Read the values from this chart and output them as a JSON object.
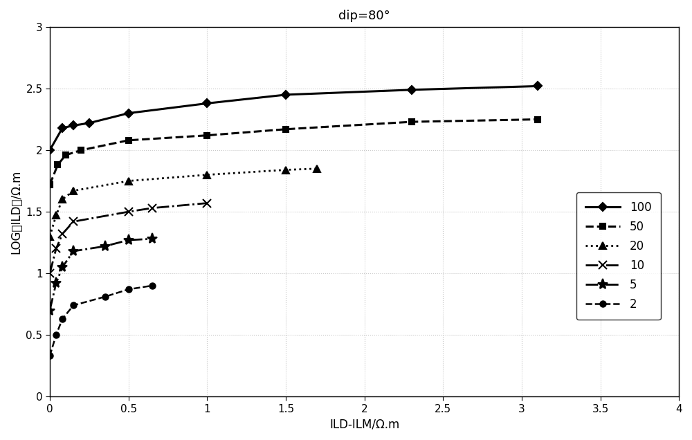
{
  "title": "dip=80°",
  "xlabel": "ILD-ILM/Ω.m",
  "ylabel": "LOG（ILD）/Ω.m",
  "xlim": [
    0,
    4
  ],
  "ylim": [
    0,
    3
  ],
  "xticks": [
    0,
    0.5,
    1,
    1.5,
    2,
    2.5,
    3,
    3.5,
    4
  ],
  "yticks": [
    0,
    0.5,
    1,
    1.5,
    2,
    2.5,
    3
  ],
  "series": [
    {
      "label": "100",
      "linestyle": "-",
      "marker": "D",
      "color": "#000000",
      "linewidth": 2.2,
      "markersize": 6,
      "x": [
        0.0,
        0.08,
        0.15,
        0.25,
        0.5,
        1.0,
        1.5,
        2.3,
        3.1
      ],
      "y": [
        2.0,
        2.18,
        2.2,
        2.22,
        2.3,
        2.38,
        2.45,
        2.49,
        2.52
      ]
    },
    {
      "label": "50",
      "linestyle": "--",
      "marker": "s",
      "color": "#000000",
      "linewidth": 2.2,
      "markersize": 6,
      "x": [
        0.0,
        0.05,
        0.1,
        0.2,
        0.5,
        1.0,
        1.5,
        2.3,
        3.1
      ],
      "y": [
        1.72,
        1.88,
        1.96,
        2.0,
        2.08,
        2.12,
        2.17,
        2.23,
        2.25
      ]
    },
    {
      "label": "20",
      "linestyle": ":",
      "marker": "^",
      "color": "#000000",
      "linewidth": 2.0,
      "markersize": 7,
      "x": [
        0.0,
        0.04,
        0.08,
        0.15,
        0.5,
        1.0,
        1.5,
        1.7
      ],
      "y": [
        1.3,
        1.47,
        1.6,
        1.67,
        1.75,
        1.8,
        1.84,
        1.85
      ]
    },
    {
      "label": "10",
      "linestyle": "-.",
      "marker": "x",
      "color": "#000000",
      "linewidth": 2.0,
      "markersize": 9,
      "x": [
        0.0,
        0.04,
        0.08,
        0.15,
        0.5,
        0.65,
        1.0
      ],
      "y": [
        1.0,
        1.2,
        1.32,
        1.42,
        1.5,
        1.53,
        1.57
      ]
    },
    {
      "label": "5",
      "linestyle": "-.",
      "marker": "*",
      "color": "#000000",
      "linewidth": 2.0,
      "markersize": 11,
      "x": [
        0.0,
        0.04,
        0.08,
        0.15,
        0.35,
        0.5,
        0.65
      ],
      "y": [
        0.7,
        0.92,
        1.05,
        1.18,
        1.22,
        1.27,
        1.28
      ]
    },
    {
      "label": "2",
      "linestyle": "--",
      "marker": "o",
      "color": "#000000",
      "linewidth": 1.8,
      "markersize": 6,
      "x": [
        0.0,
        0.04,
        0.08,
        0.15,
        0.35,
        0.5,
        0.65
      ],
      "y": [
        0.33,
        0.5,
        0.63,
        0.74,
        0.81,
        0.87,
        0.9
      ]
    }
  ],
  "legend_loc": "lower right",
  "grid_color": "#c8c8c8",
  "background_color": "#ffffff",
  "title_fontsize": 13,
  "label_fontsize": 12,
  "tick_fontsize": 11
}
